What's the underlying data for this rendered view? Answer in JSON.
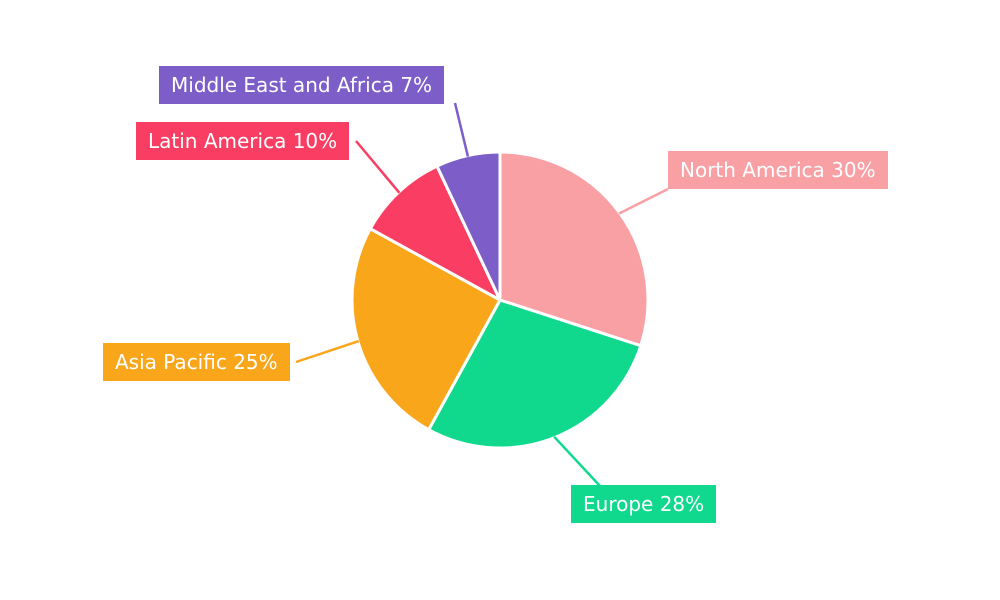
{
  "chart_data": {
    "type": "pie",
    "title": "",
    "direction": "clockwise",
    "start_angle_deg": 0,
    "legend_position": "none",
    "labels_style": "callout-boxes",
    "background_color": "#ffffff",
    "label_text_color": "#ffffff",
    "slices": [
      {
        "label": "North America",
        "value": 30,
        "display": "North America 30%",
        "color": "#F9A0A5"
      },
      {
        "label": "Europe",
        "value": 28,
        "display": "Europe 28%",
        "color": "#10D98E"
      },
      {
        "label": "Asia Pacific",
        "value": 25,
        "display": "Asia Pacific 25%",
        "color": "#F9A61A"
      },
      {
        "label": "Latin America",
        "value": 10,
        "display": "Latin America 10%",
        "color": "#FA3E63"
      },
      {
        "label": "Middle East and Africa",
        "value": 7,
        "display": "Middle East and Africa 7%",
        "color": "#7D5EC8"
      }
    ]
  }
}
